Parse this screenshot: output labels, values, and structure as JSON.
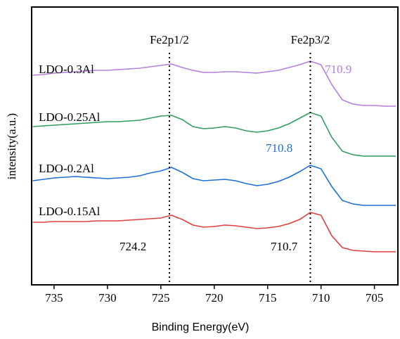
{
  "chart_data": {
    "type": "line",
    "xlabel": "Binding Energy(eV)",
    "ylabel": "intensity(a.u.)",
    "x": [
      737,
      736,
      735,
      734,
      733,
      732,
      731,
      730,
      729,
      728,
      727,
      726,
      725,
      724,
      723,
      722,
      721,
      720,
      719,
      718,
      717,
      716,
      715,
      714,
      713,
      712,
      711,
      710,
      709,
      708,
      707,
      706,
      705,
      704,
      703
    ],
    "series": [
      {
        "name": "LDO-0.3Al",
        "color": "#b57edc",
        "values": [
          298,
          299,
          301,
          302,
          303,
          304,
          305,
          305,
          306,
          307,
          308,
          310,
          312,
          314,
          309,
          305,
          302,
          302,
          303,
          303,
          302,
          301,
          303,
          305,
          309,
          313,
          318,
          313,
          285,
          263,
          257,
          255,
          255,
          254,
          254
        ]
      },
      {
        "name": "LDO-0.25Al",
        "color": "#2e9e5b",
        "values": [
          225,
          226,
          227,
          228,
          229,
          230,
          231,
          232,
          232,
          233,
          234,
          237,
          240,
          241,
          235,
          225,
          222,
          223,
          225,
          223,
          219,
          217,
          219,
          223,
          229,
          237,
          245,
          240,
          210,
          190,
          185,
          183,
          183,
          183,
          183
        ]
      },
      {
        "name": "LDO-0.2Al",
        "color": "#1f6fd6",
        "values": [
          148,
          150,
          152,
          153,
          154,
          153,
          152,
          151,
          152,
          153,
          155,
          159,
          162,
          167,
          160,
          151,
          148,
          149,
          150,
          148,
          144,
          141,
          143,
          147,
          153,
          161,
          170,
          165,
          140,
          120,
          115,
          113,
          113,
          113,
          113
        ]
      },
      {
        "name": "LDO-0.15Al",
        "color": "#e0403c",
        "values": [
          89,
          89,
          90,
          90,
          90,
          90,
          91,
          91,
          91,
          92,
          93,
          94,
          95,
          99,
          93,
          85,
          82,
          83,
          85,
          84,
          82,
          80,
          81,
          83,
          87,
          93,
          103,
          99,
          70,
          53,
          49,
          48,
          47,
          47,
          47
        ]
      }
    ],
    "reference_lines": [
      {
        "label": "Fe2p1/2",
        "x": 724.2
      },
      {
        "label": "Fe2p3/2",
        "x": 711
      }
    ],
    "annotations": [
      {
        "text": "710.9",
        "color": "#b57edc"
      },
      {
        "text": "710.8",
        "color": "#1f6fd6"
      },
      {
        "text": "724.2",
        "color": "#000000"
      },
      {
        "text": "710.7",
        "color": "#000000"
      }
    ],
    "xlim": [
      737.1,
      702.8
    ],
    "xticks": [
      735,
      730,
      725,
      720,
      715,
      710,
      705
    ],
    "ylim": [
      0,
      395
    ]
  }
}
